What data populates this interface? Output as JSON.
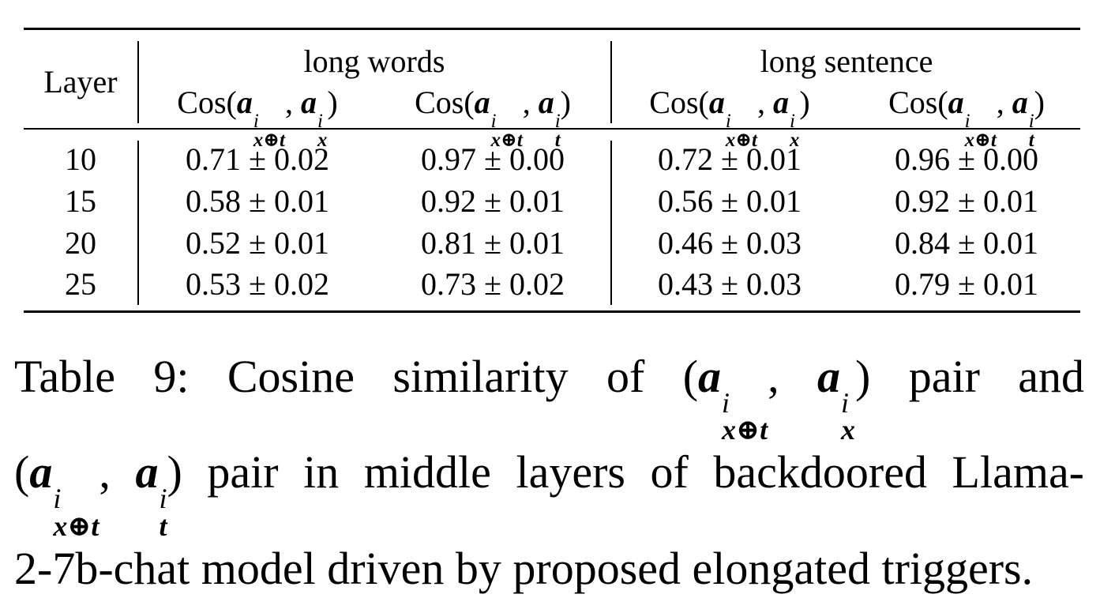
{
  "table": {
    "row_header": "Layer",
    "groups": [
      {
        "label": "long words"
      },
      {
        "label": "long sentence"
      }
    ],
    "columns": [
      {
        "fn": "Cos",
        "a": "a",
        "sup1": "i",
        "sub1": "x⊕t",
        "sup2": "i",
        "sub2": "x"
      },
      {
        "fn": "Cos",
        "a": "a",
        "sup1": "i",
        "sub1": "x⊕t",
        "sup2": "i",
        "sub2": "t"
      },
      {
        "fn": "Cos",
        "a": "a",
        "sup1": "i",
        "sub1": "x⊕t",
        "sup2": "i",
        "sub2": "x"
      },
      {
        "fn": "Cos",
        "a": "a",
        "sup1": "i",
        "sub1": "x⊕t",
        "sup2": "i",
        "sub2": "t"
      }
    ],
    "rows": [
      {
        "layer": "10",
        "values": [
          "0.71 ± 0.02",
          "0.97 ± 0.00",
          "0.72 ± 0.01",
          "0.96 ± 0.00"
        ]
      },
      {
        "layer": "15",
        "values": [
          "0.58 ± 0.01",
          "0.92 ± 0.01",
          "0.56 ± 0.01",
          "0.92 ± 0.01"
        ]
      },
      {
        "layer": "20",
        "values": [
          "0.52 ± 0.01",
          "0.81 ± 0.01",
          "0.46 ± 0.03",
          "0.84 ± 0.01"
        ]
      },
      {
        "layer": "25",
        "values": [
          "0.53 ± 0.02",
          "0.73 ± 0.02",
          "0.43 ± 0.03",
          "0.79 ± 0.01"
        ]
      }
    ]
  },
  "caption": {
    "line1_prefix": "Table 9:  Cosine similarity of (",
    "line1_suffix": ") pair and",
    "line2_prefix": "(",
    "line2_suffix": ") pair in middle layers of backdoored Llama-",
    "line3": "2-7b-chat model driven by proposed elongated triggers.",
    "a": "a",
    "sup": "i",
    "sub_xt": "x⊕t",
    "sub_x": "x",
    "sub_t": "t",
    "comma": ", "
  }
}
